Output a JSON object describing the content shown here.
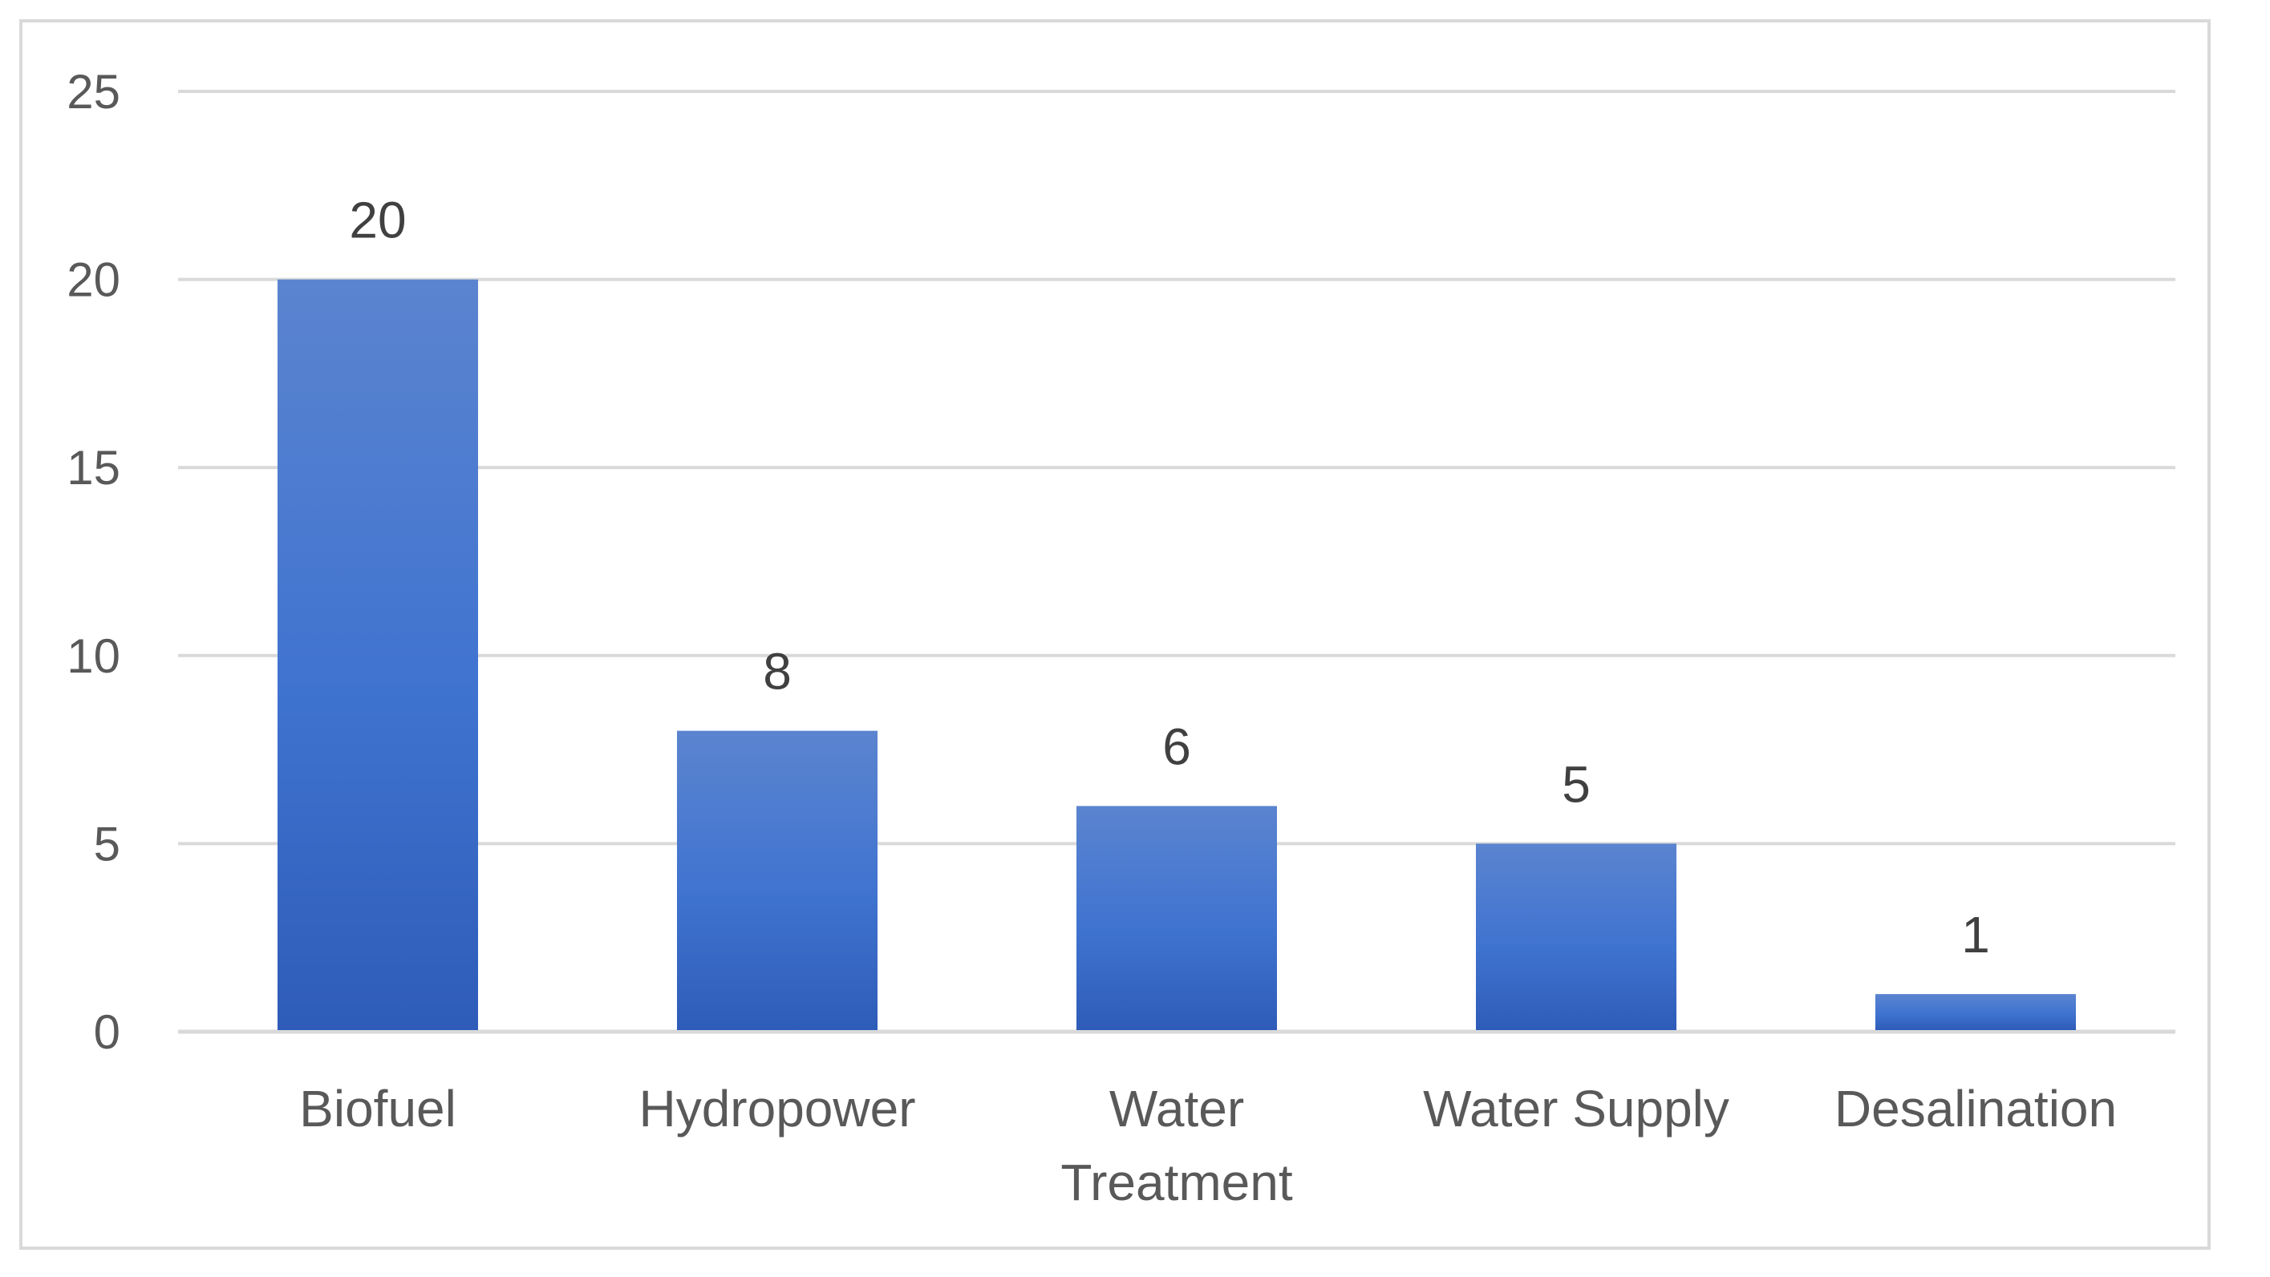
{
  "chart_data": {
    "type": "bar",
    "categories": [
      "Biofuel",
      "Hydropower",
      "Water Treatment",
      "Water Supply",
      "Desalination"
    ],
    "category_lines": [
      [
        "Biofuel"
      ],
      [
        "Hydropower"
      ],
      [
        "Water",
        "Treatment"
      ],
      [
        "Water Supply"
      ],
      [
        "Desalination"
      ]
    ],
    "values": [
      20,
      8,
      6,
      5,
      1
    ],
    "data_labels": [
      "20",
      "8",
      "6",
      "5",
      "1"
    ],
    "ylim": [
      0,
      25
    ],
    "yticks": [
      0,
      5,
      10,
      15,
      20,
      25
    ],
    "ytick_labels": [
      "0",
      "5",
      "10",
      "15",
      "20",
      "25"
    ],
    "title": "",
    "xlabel": "",
    "ylabel": "",
    "grid": "horizontal",
    "legend": "none",
    "colors": {
      "bar_top": "#5b84cf",
      "bar_mid": "#3f73d0",
      "bar_bottom": "#2e5cb8",
      "gridline": "#d9d9d9",
      "frame": "#d9d9d9",
      "text": "#595959"
    }
  }
}
